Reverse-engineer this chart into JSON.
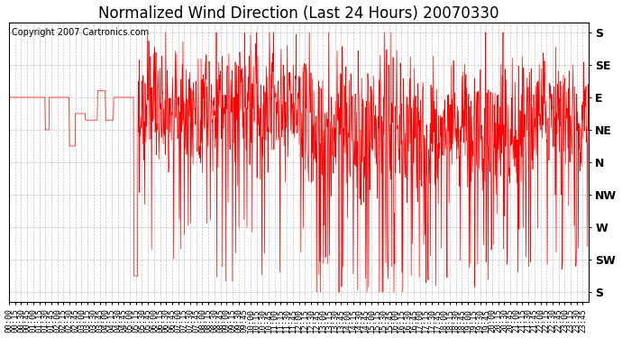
{
  "title": "Normalized Wind Direction (Last 24 Hours) 20070330",
  "copyright_text": "Copyright 2007 Cartronics.com",
  "y_labels_top_to_bottom": [
    "S",
    "SE",
    "E",
    "NE",
    "N",
    "NW",
    "W",
    "SW",
    "S"
  ],
  "y_ticks": [
    8,
    7,
    6,
    5,
    4,
    3,
    2,
    1,
    0
  ],
  "ylim": [
    -0.3,
    8.3
  ],
  "line_color": "#ff0000",
  "background_color": "#ffffff",
  "plot_bg_color": "#ffffff",
  "grid_color": "#999999",
  "title_fontsize": 12,
  "copyright_fontsize": 7,
  "x_label_fontsize": 6.5,
  "y_label_fontsize": 9,
  "total_minutes": 1440,
  "figsize": [
    6.9,
    3.75
  ],
  "dpi": 100
}
